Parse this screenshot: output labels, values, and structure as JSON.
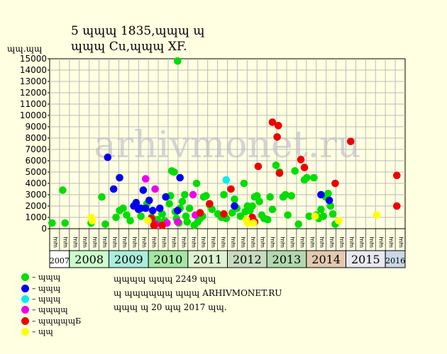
{
  "header": {
    "title_line1": "5 ɰɰɰ 1835,ɰɰɰ ɰ",
    "title_line2": "ɰɰɰ Cu,ɰɰɰ XF.",
    "unit_label": "ɰɰ.ɰɰ"
  },
  "watermark": "arhivmonet.ru",
  "notes": {
    "total": "ɰɰɰɰ ɰɰɰ 2249 ɰɰ",
    "source": "ɰ ɰɰɰɰɰɰ ɰɰɰ ARHIVMONET.RU",
    "date": "ɰɰɰ ɰ 20 ɰɰ 2017 ɰɰ."
  },
  "chart_data": {
    "type": "scatter",
    "title": "5 ɰɰɰ 1835,ɰɰɰ ɰ ɰɰɰ Cu,ɰɰɰ XF.",
    "ylabel": "ɰɰ.ɰɰ",
    "ylim": [
      0,
      15000
    ],
    "yticks": [
      0,
      1000,
      2000,
      3000,
      4000,
      5000,
      6000,
      7000,
      8000,
      9000,
      10000,
      11000,
      12000,
      13000,
      14000,
      15000
    ],
    "grid": true,
    "years": [
      {
        "label": "2007",
        "color": "#ffffff",
        "start": 0,
        "len": 2
      },
      {
        "label": "2008",
        "color": "#ccffcc",
        "start": 2,
        "len": 4
      },
      {
        "label": "2009",
        "color": "#aaeedd",
        "start": 6,
        "len": 4
      },
      {
        "label": "2010",
        "color": "#a4e6a4",
        "start": 10,
        "len": 4
      },
      {
        "label": "2011",
        "color": "#ddf2d0",
        "start": 14,
        "len": 4
      },
      {
        "label": "2012",
        "color": "#c8dcc0",
        "start": 18,
        "len": 4
      },
      {
        "label": "2013",
        "color": "#b2d8b0",
        "start": 22,
        "len": 4
      },
      {
        "label": "2014",
        "color": "#e3c9b0",
        "start": 26,
        "len": 4
      },
      {
        "label": "2015",
        "color": "#e8e8f0",
        "start": 30,
        "len": 4
      },
      {
        "label": "2016",
        "color": "#c8d8e8",
        "start": 34,
        "len": 2
      }
    ],
    "quarter_labels": [
      "ɰɰ",
      "ɰɰ",
      "ɰɰ",
      "ɰɰ"
    ],
    "legend": [
      {
        "name": "– ɰɰɰ",
        "color": "#00dd00"
      },
      {
        "name": "– ɰɰɰ",
        "color": "#0000ee"
      },
      {
        "name": "– ɰɰɰ",
        "color": "#00eeee"
      },
      {
        "name": "– ɰɰɰɰ",
        "color": "#ee00ee"
      },
      {
        "name": "– ɰɰɰɰɰБ",
        "color": "#ee0000"
      },
      {
        "name": "– ɰɰ",
        "color": "#ffff00"
      }
    ],
    "series": [
      {
        "name": "– ɰɰɰ",
        "color": "#00dd00",
        "points": [
          [
            0.2,
            500
          ],
          [
            1.1,
            3400
          ],
          [
            1.3,
            500
          ],
          [
            3.5,
            500
          ],
          [
            4.4,
            2800
          ],
          [
            4.7,
            400
          ],
          [
            5.6,
            1000
          ],
          [
            5.9,
            1600
          ],
          [
            6.2,
            1800
          ],
          [
            6.5,
            1200
          ],
          [
            6.8,
            700
          ],
          [
            7.4,
            1900
          ],
          [
            7.7,
            1100
          ],
          [
            8.2,
            2200
          ],
          [
            8.6,
            1000
          ],
          [
            9.1,
            800
          ],
          [
            9.5,
            1300
          ],
          [
            9.7,
            700
          ],
          [
            10.1,
            2200
          ],
          [
            10.2,
            2900
          ],
          [
            10.3,
            5100
          ],
          [
            10.5,
            5000
          ],
          [
            10.6,
            1500
          ],
          [
            10.7,
            900
          ],
          [
            10.8,
            14800
          ],
          [
            10.9,
            500
          ],
          [
            11.0,
            1800
          ],
          [
            11.2,
            2400
          ],
          [
            11.4,
            3000
          ],
          [
            11.5,
            1100
          ],
          [
            11.6,
            600
          ],
          [
            11.8,
            1800
          ],
          [
            12.2,
            300
          ],
          [
            12.4,
            4000
          ],
          [
            12.5,
            600
          ],
          [
            12.7,
            900
          ],
          [
            12.9,
            1100
          ],
          [
            13.0,
            2800
          ],
          [
            13.2,
            2900
          ],
          [
            13.5,
            2100
          ],
          [
            13.7,
            1700
          ],
          [
            14.2,
            1300
          ],
          [
            14.5,
            1000
          ],
          [
            14.7,
            3000
          ],
          [
            14.9,
            900
          ],
          [
            15.4,
            1400
          ],
          [
            15.6,
            2600
          ],
          [
            15.8,
            1800
          ],
          [
            16.1,
            1100
          ],
          [
            16.4,
            4000
          ],
          [
            16.5,
            1500
          ],
          [
            16.7,
            2000
          ],
          [
            16.9,
            1600
          ],
          [
            17.1,
            2000
          ],
          [
            17.3,
            2800
          ],
          [
            17.5,
            2900
          ],
          [
            17.7,
            2400
          ],
          [
            17.9,
            1200
          ],
          [
            18.1,
            900
          ],
          [
            18.4,
            800
          ],
          [
            18.6,
            2800
          ],
          [
            18.8,
            1700
          ],
          [
            19.1,
            5600
          ],
          [
            19.4,
            5000
          ],
          [
            19.7,
            2800
          ],
          [
            19.9,
            3000
          ],
          [
            20.1,
            1200
          ],
          [
            20.4,
            2900
          ],
          [
            20.7,
            5100
          ],
          [
            21.0,
            400
          ],
          [
            21.5,
            4300
          ],
          [
            21.7,
            4500
          ],
          [
            21.9,
            1100
          ],
          [
            22.3,
            4500
          ],
          [
            22.5,
            1200
          ],
          [
            22.7,
            900
          ],
          [
            22.9,
            1700
          ],
          [
            23.1,
            1100
          ],
          [
            23.3,
            2800
          ],
          [
            23.5,
            3100
          ],
          [
            23.7,
            2000
          ],
          [
            23.9,
            1300
          ],
          [
            24.1,
            400
          ]
        ]
      },
      {
        "name": "– ɰɰɰ",
        "color": "#0000ee",
        "points": [
          [
            4.9,
            6300
          ],
          [
            5.4,
            3500
          ],
          [
            5.9,
            4500
          ],
          [
            7.1,
            2000
          ],
          [
            7.3,
            2300
          ],
          [
            7.5,
            1700
          ],
          [
            7.7,
            1800
          ],
          [
            7.9,
            3400
          ],
          [
            8.1,
            1800
          ],
          [
            8.4,
            2500
          ],
          [
            8.7,
            1600
          ],
          [
            9.3,
            1800
          ],
          [
            9.8,
            2800
          ],
          [
            10.8,
            1600
          ],
          [
            11.0,
            4500
          ],
          [
            15.6,
            2000
          ],
          [
            22.9,
            3000
          ],
          [
            23.6,
            2500
          ]
        ]
      },
      {
        "name": "– ɰɰɰ",
        "color": "#00eeee",
        "points": [
          [
            14.9,
            4300
          ]
        ]
      },
      {
        "name": "– ɰɰɰɰ",
        "color": "#ee00ee",
        "points": [
          [
            8.1,
            4400
          ],
          [
            8.9,
            3500
          ],
          [
            9.0,
            400
          ],
          [
            9.9,
            500
          ],
          [
            10.8,
            600
          ],
          [
            12.1,
            3000
          ],
          [
            12.3,
            1200
          ]
        ]
      },
      {
        "name": "– ɰɰɰɰɰБ",
        "color": "#ee0000",
        "points": [
          [
            8.6,
            900
          ],
          [
            8.8,
            300
          ],
          [
            9.5,
            300
          ],
          [
            12.7,
            1400
          ],
          [
            13.5,
            2200
          ],
          [
            14.7,
            1300
          ],
          [
            15.3,
            3500
          ],
          [
            17.1,
            1000
          ],
          [
            17.3,
            600
          ],
          [
            17.6,
            5500
          ],
          [
            18.8,
            9400
          ],
          [
            19.2,
            8100
          ],
          [
            19.3,
            9100
          ],
          [
            19.4,
            4900
          ],
          [
            21.2,
            6100
          ],
          [
            21.5,
            5400
          ],
          [
            24.1,
            4000
          ],
          [
            25.4,
            7700
          ],
          [
            29.3,
            4700
          ],
          [
            29.3,
            2000
          ]
        ]
      },
      {
        "name": "– ɰɰ",
        "color": "#ffff00",
        "points": [
          [
            3.5,
            1000
          ],
          [
            3.6,
            700
          ],
          [
            8.3,
            700
          ],
          [
            16.6,
            800
          ],
          [
            16.7,
            500
          ],
          [
            17.2,
            500
          ],
          [
            22.4,
            1100
          ],
          [
            24.4,
            700
          ],
          [
            27.6,
            1200
          ]
        ]
      }
    ]
  }
}
